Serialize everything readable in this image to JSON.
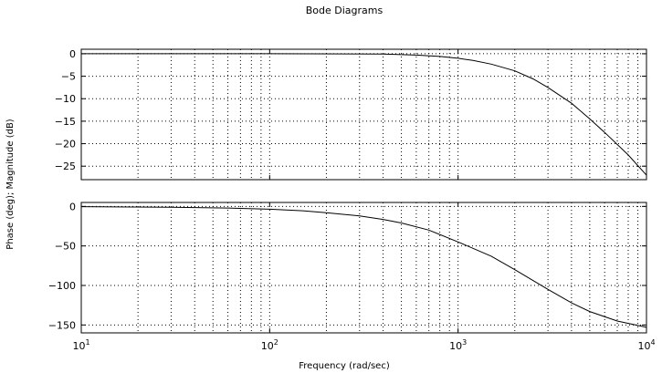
{
  "chart_data": {
    "type": "line",
    "title": "Bode Diagrams",
    "xlabel": "Frequency (rad/sec)",
    "ylabel": "Phase (deg); Magnitude (dB)",
    "xscale": "log",
    "xlim": [
      10,
      10000
    ],
    "grid": true,
    "x_tick_labels": [
      {
        "base": "10",
        "exp": "1"
      },
      {
        "base": "10",
        "exp": "2"
      },
      {
        "base": "10",
        "exp": "3"
      },
      {
        "base": "10",
        "exp": "4"
      }
    ],
    "panels": [
      {
        "name": "magnitude",
        "ylim": [
          -28,
          1
        ],
        "yticks": [
          0,
          -5,
          -10,
          -15,
          -20,
          -25
        ],
        "ytick_labels": [
          "0",
          "−5",
          "−10",
          "−15",
          "−20",
          "−25"
        ],
        "series": [
          {
            "x": [
              10,
              100,
              400,
              600,
              800,
              1000,
              1200,
              1500,
              2000,
              2500,
              3000,
              4000,
              5000,
              6000,
              8000,
              10000
            ],
            "y": [
              0,
              0,
              -0.05,
              -0.3,
              -0.6,
              -1,
              -1.5,
              -2.3,
              -3.8,
              -5.6,
              -7.5,
              -11,
              -14.5,
              -17.5,
              -22.5,
              -27
            ]
          }
        ]
      },
      {
        "name": "phase",
        "ylim": [
          -160,
          5
        ],
        "yticks": [
          0,
          -50,
          -100,
          -150
        ],
        "ytick_labels": [
          "0",
          "−50",
          "−100",
          "−150"
        ],
        "series": [
          {
            "x": [
              10,
              30,
              60,
              100,
              150,
              200,
              300,
              400,
              500,
              700,
              1000,
              1500,
              2000,
              3000,
              4000,
              5000,
              7000,
              10000
            ],
            "y": [
              -0.3,
              -1,
              -2,
              -3.5,
              -5.5,
              -8,
              -12,
              -16.5,
              -21,
              -30,
              -45,
              -63,
              -80,
              -105,
              -122,
              -133,
              -145,
              -153
            ]
          }
        ]
      }
    ]
  }
}
